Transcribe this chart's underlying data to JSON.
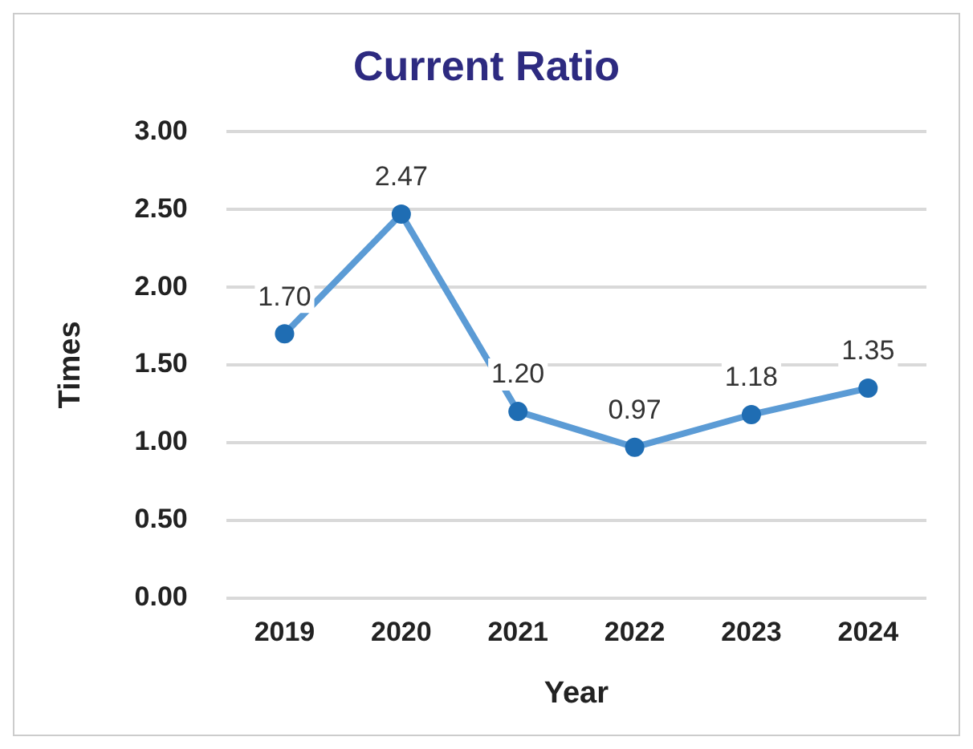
{
  "chart_data": {
    "type": "line",
    "title": "Current Ratio",
    "xlabel": "Year",
    "ylabel": "Times",
    "categories": [
      "2019",
      "2020",
      "2021",
      "2022",
      "2023",
      "2024"
    ],
    "series": [
      {
        "color": "#5b9bd5",
        "values": [
          1.7,
          2.47,
          1.2,
          0.97,
          1.18,
          1.35
        ]
      }
    ],
    "value_labels": [
      "1.70",
      "2.47",
      "1.20",
      "0.97",
      "1.18",
      "1.35"
    ],
    "ylim": [
      0,
      3
    ],
    "yticks": [
      {
        "value": 0,
        "label": "0.00"
      },
      {
        "value": 0.5,
        "label": "0.50"
      },
      {
        "value": 1,
        "label": "1.00"
      },
      {
        "value": 1.5,
        "label": "1.50"
      },
      {
        "value": 2,
        "label": "2.00"
      },
      {
        "value": 2.5,
        "label": "2.50"
      },
      {
        "value": 3,
        "label": "3.00"
      }
    ],
    "grid": "y",
    "legend": false,
    "marker": "circle",
    "line_style": "solid"
  }
}
